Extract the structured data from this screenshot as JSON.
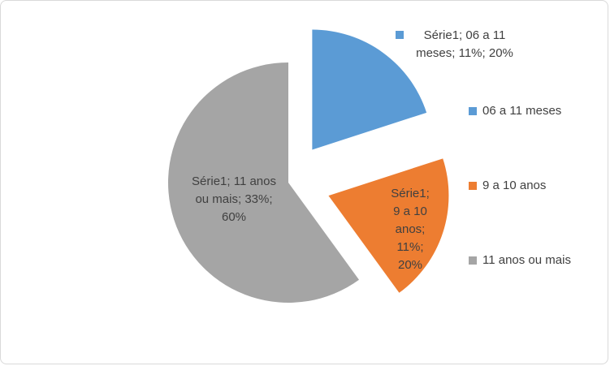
{
  "chart_data": {
    "type": "pie",
    "series_name": "Série1",
    "label_separator": "; ",
    "categories": [
      "06 a 11 meses",
      "9 a 10 anos",
      "11 anos ou mais"
    ],
    "values": [
      11,
      11,
      33
    ],
    "value_labels": [
      "11%",
      "11%",
      "33%"
    ],
    "percents": [
      20,
      20,
      60
    ],
    "percent_labels": [
      "20%",
      "20%",
      "60%"
    ],
    "colors": [
      "#5b9bd5",
      "#ed7d31",
      "#a5a5a5"
    ],
    "legend": "right"
  }
}
